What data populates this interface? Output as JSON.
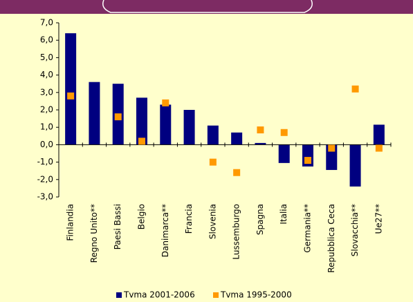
{
  "chart_data": {
    "type": "bar",
    "categories": [
      "Finlandia",
      "Regno Unito**",
      "Paesi Bassi",
      "Belgio",
      "Danimarca**",
      "Francia",
      "Slovenia",
      "Lussemburgo",
      "Spagna",
      "Italia",
      "Germania**",
      "Repubblica Ceca",
      "Slovacchia**",
      "Ue27**"
    ],
    "series": [
      {
        "name": "Tvma 2001-2006",
        "color": "#000080",
        "values": [
          6.4,
          3.6,
          3.5,
          2.7,
          2.3,
          2.0,
          1.1,
          0.7,
          0.1,
          -1.05,
          -1.25,
          -1.45,
          -2.4,
          1.15
        ]
      },
      {
        "name": "Tvma 1995-2000",
        "color": "#ff9900",
        "values": [
          2.8,
          null,
          1.6,
          0.2,
          2.4,
          null,
          -1.0,
          -1.6,
          0.85,
          0.7,
          -0.9,
          -0.2,
          3.2,
          -0.2
        ]
      }
    ],
    "ylim": [
      -3,
      7
    ],
    "yticks": [
      {
        "value": -3,
        "label": "-3,0"
      },
      {
        "value": -2,
        "label": "-2,0"
      },
      {
        "value": -1,
        "label": "-1,0"
      },
      {
        "value": 0,
        "label": "0,0"
      },
      {
        "value": 1,
        "label": "1,0"
      },
      {
        "value": 2,
        "label": "2,0"
      },
      {
        "value": 3,
        "label": "3,0"
      },
      {
        "value": 4,
        "label": "4,0"
      },
      {
        "value": 5,
        "label": "5,0"
      },
      {
        "value": 6,
        "label": "6,0"
      },
      {
        "value": 7,
        "label": "7,0"
      }
    ],
    "legend": "bottom"
  }
}
